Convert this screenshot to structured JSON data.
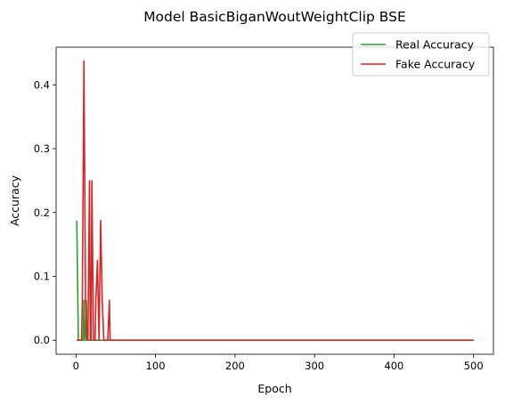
{
  "chart_data": {
    "type": "line",
    "title": "Model BasicBiganWoutWeightClip BSE",
    "xlabel": "Epoch",
    "ylabel": "Accuracy",
    "xlim": [
      -25,
      525
    ],
    "ylim": [
      -0.022,
      0.459
    ],
    "xticks": [
      0,
      100,
      200,
      300,
      400,
      500
    ],
    "yticks": [
      0.0,
      0.1,
      0.2,
      0.3,
      0.4
    ],
    "xtick_labels": [
      "0",
      "100",
      "200",
      "300",
      "400",
      "500"
    ],
    "ytick_labels": [
      "0.0",
      "0.1",
      "0.2",
      "0.3",
      "0.4"
    ],
    "legend_position": "top-right",
    "grid": false,
    "series": [
      {
        "name": "Real Accuracy",
        "color": "#2ca02c",
        "points": [
          [
            1,
            0.1875
          ],
          [
            3,
            0.0
          ],
          [
            9,
            0.0
          ],
          [
            10,
            0.0625
          ],
          [
            11,
            0.0
          ],
          [
            12,
            0.0
          ],
          [
            13,
            0.0625
          ],
          [
            14,
            0.0
          ],
          [
            500,
            0.0
          ]
        ]
      },
      {
        "name": "Fake Accuracy",
        "color": "#d62728",
        "points": [
          [
            1,
            0.0
          ],
          [
            7,
            0.0
          ],
          [
            8,
            0.0625
          ],
          [
            10,
            0.4375
          ],
          [
            12,
            0.0625
          ],
          [
            14,
            0.0
          ],
          [
            15,
            0.0
          ],
          [
            17,
            0.25
          ],
          [
            18,
            0.0
          ],
          [
            19,
            0.0
          ],
          [
            20,
            0.25
          ],
          [
            22,
            0.0
          ],
          [
            24,
            0.0
          ],
          [
            25,
            0.0625
          ],
          [
            27,
            0.125
          ],
          [
            29,
            0.0
          ],
          [
            31,
            0.1875
          ],
          [
            33,
            0.0625
          ],
          [
            35,
            0.0
          ],
          [
            36,
            0.0
          ],
          [
            38,
            0.0
          ],
          [
            40,
            0.0
          ],
          [
            42,
            0.0625
          ],
          [
            43,
            0.0
          ],
          [
            500,
            0.0
          ]
        ]
      }
    ]
  }
}
